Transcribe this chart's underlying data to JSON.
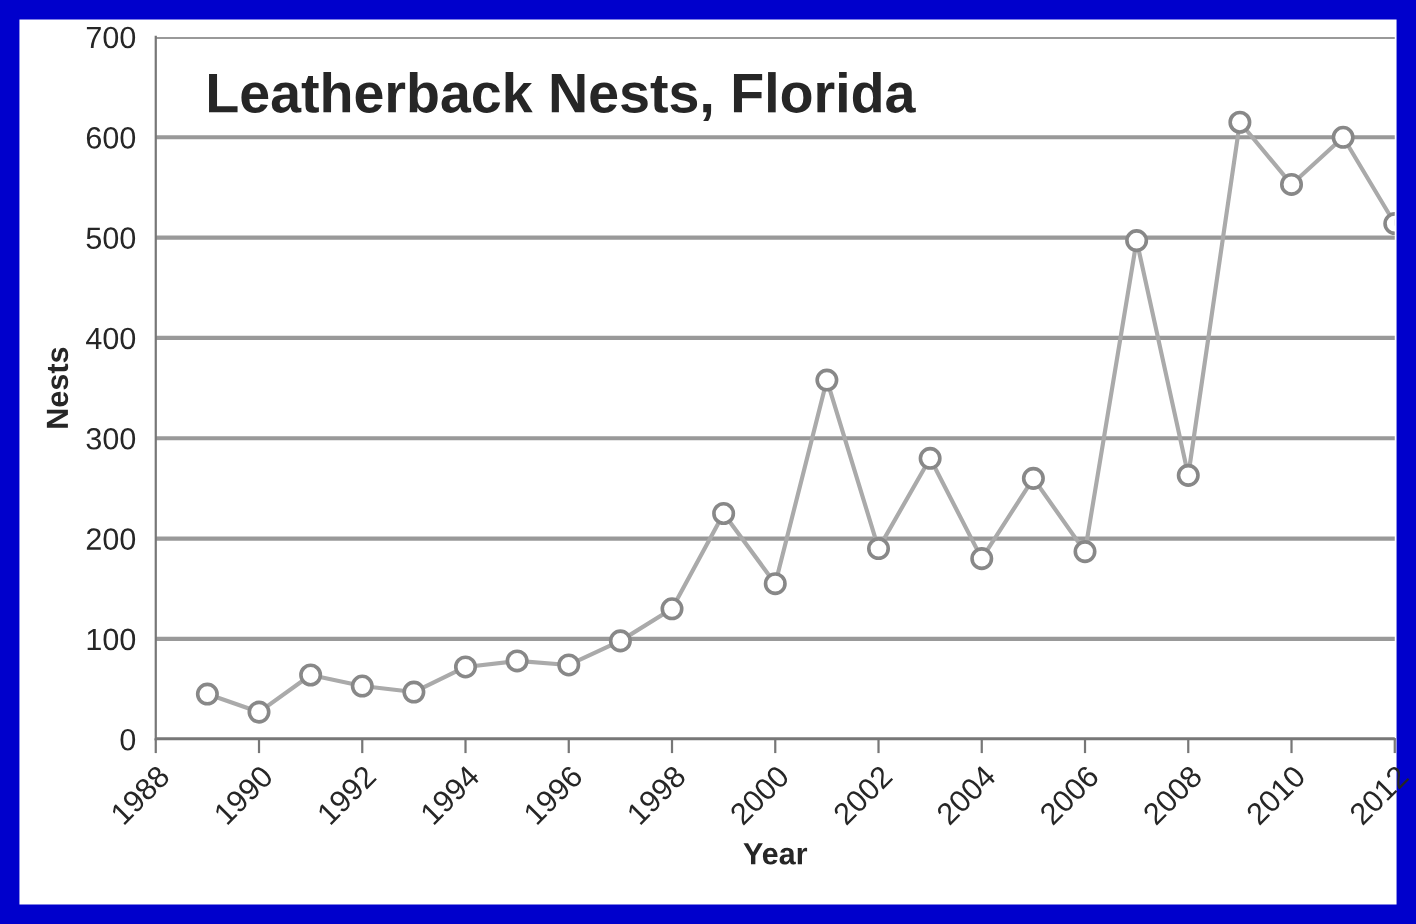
{
  "chart_data": {
    "type": "line",
    "title": "Leatherback Nests, Florida",
    "xlabel": "Year",
    "ylabel": "Nests",
    "x": [
      1989,
      1990,
      1991,
      1992,
      1993,
      1994,
      1995,
      1996,
      1997,
      1998,
      1999,
      2000,
      2001,
      2002,
      2003,
      2004,
      2005,
      2006,
      2007,
      2008,
      2009,
      2010,
      2011,
      2012
    ],
    "series": [
      {
        "color": "#aaaaaa",
        "values": [
          45,
          27,
          64,
          53,
          47,
          72,
          78,
          74,
          98,
          130,
          225,
          155,
          358,
          190,
          280,
          180,
          260,
          187,
          497,
          263,
          615,
          553,
          600,
          514
        ]
      }
    ],
    "xlim": [
      1988,
      2012
    ],
    "xticks": [
      1988,
      1990,
      1992,
      1994,
      1996,
      1998,
      2000,
      2002,
      2004,
      2006,
      2008,
      2010,
      2012
    ],
    "ylim": [
      0,
      700
    ],
    "yticks": [
      0,
      100,
      200,
      300,
      400,
      500,
      600,
      700
    ],
    "grid": "y",
    "marker": "circle",
    "line_style": "solid",
    "legend": false
  }
}
